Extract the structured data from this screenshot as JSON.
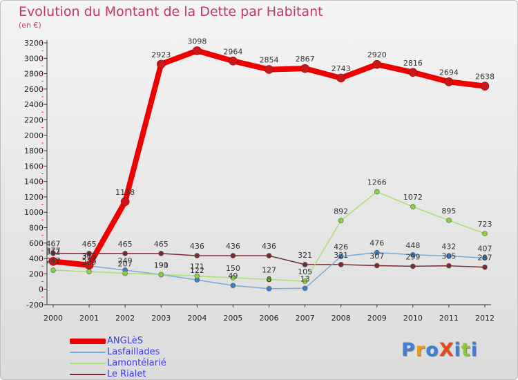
{
  "title": "Evolution du Montant de la Dette par Habitant",
  "subtitle": "(en €)",
  "logo": {
    "text": "ProXiti",
    "letter_colors": [
      "#3f7fd0",
      "#e89a1b",
      "#3f7fd0",
      "#e24c1e",
      "#3f7fd0",
      "#8cc63e",
      "#3f7fd0"
    ]
  },
  "chart_data": {
    "type": "line",
    "title": "Evolution du Montant de la Dette par Habitant",
    "ylabel": "(en €)",
    "xlabel": "",
    "ylim": [
      -200,
      3200
    ],
    "yticks": [
      -200,
      0,
      200,
      400,
      600,
      800,
      1000,
      1200,
      1400,
      1600,
      1800,
      2000,
      2200,
      2400,
      2600,
      2800,
      3000,
      3200
    ],
    "categories": [
      "2000",
      "2001",
      "2002",
      "2003",
      "2004",
      "2005",
      "2006",
      "2007",
      "2008",
      "2009",
      "2010",
      "2011",
      "2012"
    ],
    "grid": false,
    "legend_position": "bottom-left",
    "series": [
      {
        "name": "ANGLèS",
        "color": "#ee0000",
        "marker": "#c81818",
        "values": [
          362,
          313,
          1138,
          2923,
          3098,
          2964,
          2854,
          2867,
          2743,
          2920,
          2816,
          2694,
          2638
        ]
      },
      {
        "name": "Lasfaillades",
        "color": "#7aaad8",
        "marker": "#3a7fd0",
        "values": [
          377,
          303,
          249,
          190,
          122,
          49,
          8,
          13,
          426,
          476,
          448,
          432,
          407
        ]
      },
      {
        "name": "Lamontélarié",
        "color": "#a8e070",
        "marker": "#86d33a",
        "values": [
          247,
          229,
          207,
          191,
          171,
          150,
          127,
          105,
          892,
          1266,
          1072,
          895,
          723
        ]
      },
      {
        "name": "Le Rialet",
        "color": "#7a2a32",
        "marker": "#7a2a32",
        "values": [
          467,
          465,
          465,
          465,
          436,
          436,
          436,
          321,
          321,
          307,
          299,
          305,
          287
        ]
      }
    ]
  }
}
